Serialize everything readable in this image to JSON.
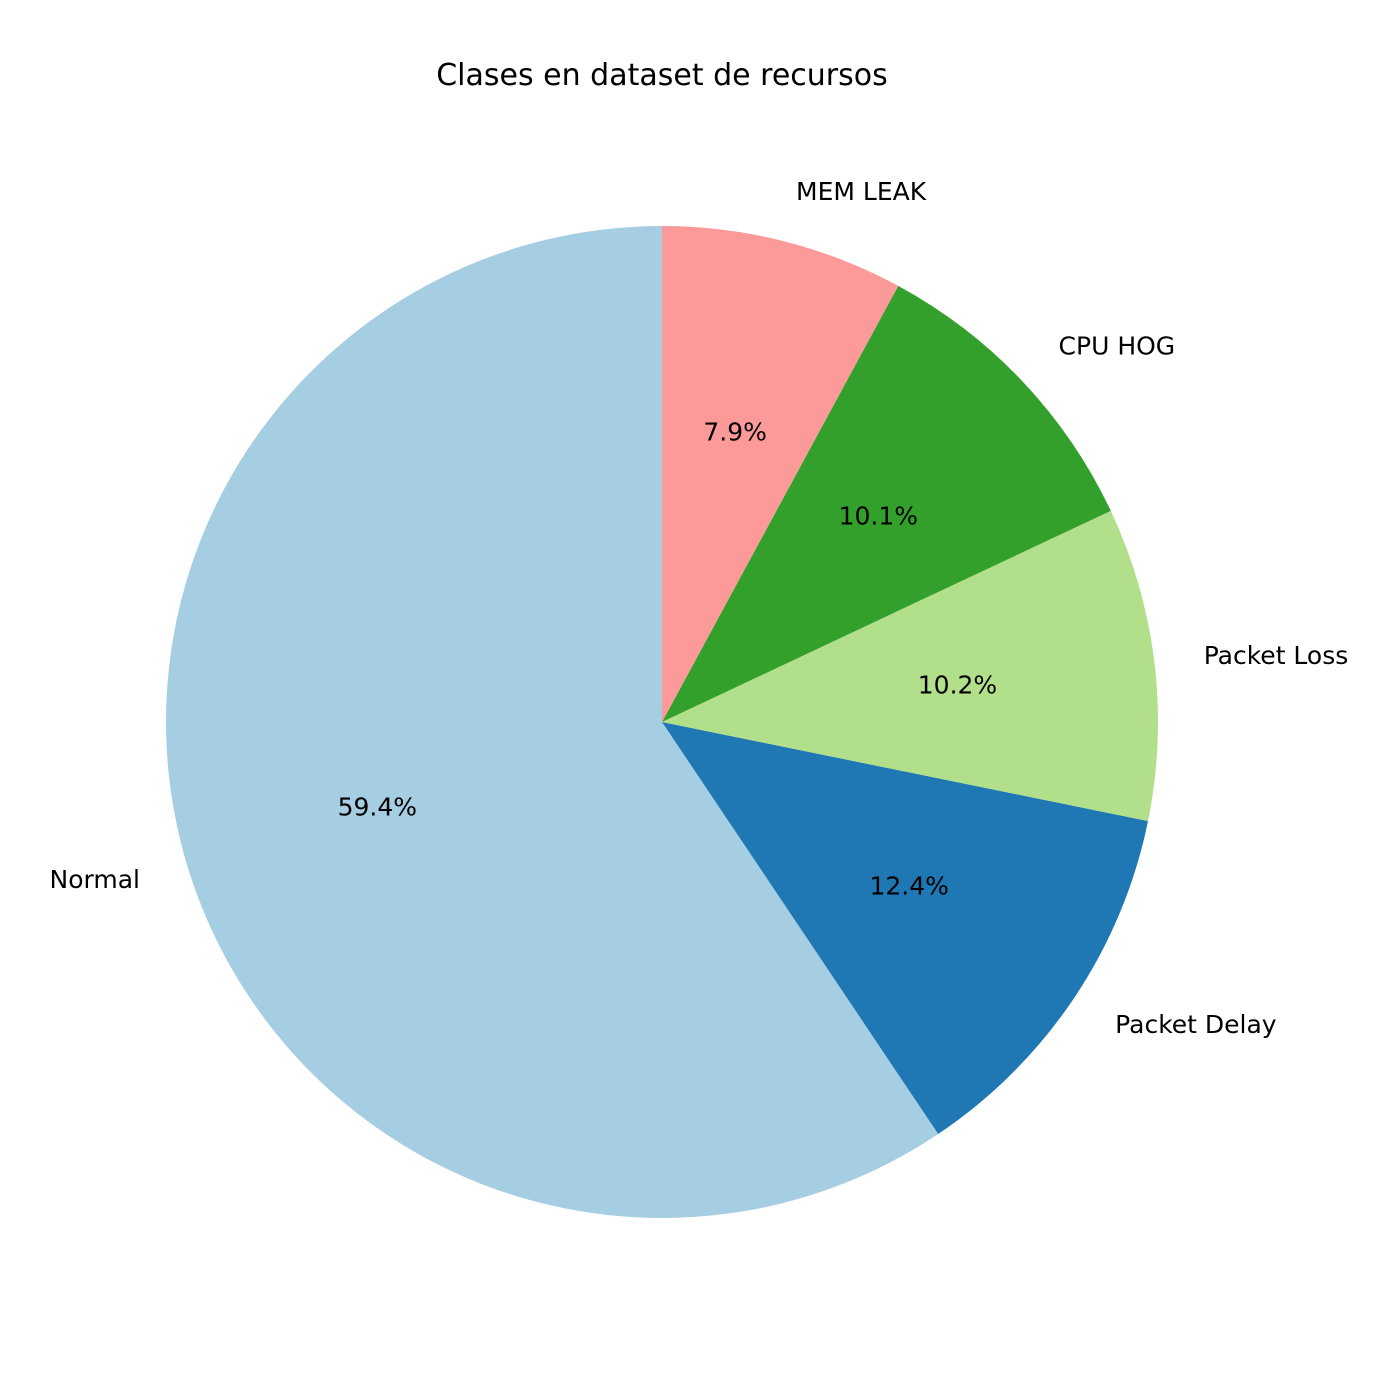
{
  "chart_data": {
    "type": "pie",
    "title": "Clases en dataset de recursos",
    "start_angle_deg": 90,
    "direction": "counterclockwise",
    "slices": [
      {
        "label": "Normal",
        "value": 59.4,
        "percent_label": "59.4%",
        "color": "#a6cee3"
      },
      {
        "label": "Packet Delay",
        "value": 12.4,
        "percent_label": "12.4%",
        "color": "#1f78b4"
      },
      {
        "label": "Packet Loss",
        "value": 10.2,
        "percent_label": "10.2%",
        "color": "#b2df8a"
      },
      {
        "label": "CPU HOG",
        "value": 10.1,
        "percent_label": "10.1%",
        "color": "#33a02c"
      },
      {
        "label": "MEM LEAK",
        "value": 7.9,
        "percent_label": "7.9%",
        "color": "#fb9a99"
      }
    ]
  }
}
